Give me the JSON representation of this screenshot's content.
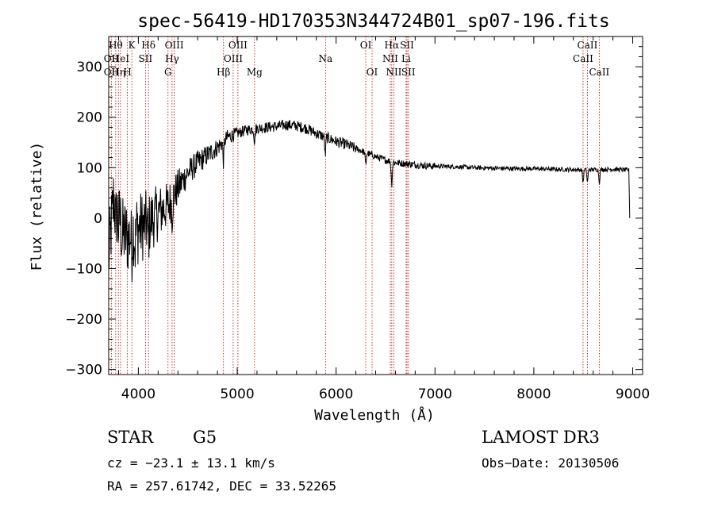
{
  "chart_data": {
    "type": "line",
    "title": "spec-56419-HD170353N344724B01_sp07-196.fits",
    "xlabel": "Wavelength (Å)",
    "ylabel": "Flux (relative)",
    "xlim": [
      3700,
      9100
    ],
    "ylim": [
      -310,
      360
    ],
    "xticks": [
      4000,
      5000,
      6000,
      7000,
      8000,
      9000
    ],
    "yticks": [
      -300,
      -200,
      -100,
      0,
      100,
      200,
      300
    ],
    "spectrum_anchors": [
      [
        3700,
        -80
      ],
      [
        3750,
        40
      ],
      [
        3800,
        10
      ],
      [
        3850,
        -30
      ],
      [
        3900,
        -40
      ],
      [
        3950,
        -20
      ],
      [
        4000,
        -20
      ],
      [
        4100,
        -10
      ],
      [
        4200,
        10
      ],
      [
        4300,
        25
      ],
      [
        4400,
        60
      ],
      [
        4500,
        90
      ],
      [
        4600,
        110
      ],
      [
        4700,
        125
      ],
      [
        4800,
        140
      ],
      [
        4900,
        160
      ],
      [
        5000,
        168
      ],
      [
        5100,
        175
      ],
      [
        5200,
        178
      ],
      [
        5300,
        180
      ],
      [
        5400,
        182
      ],
      [
        5500,
        185
      ],
      [
        5600,
        183
      ],
      [
        5700,
        178
      ],
      [
        5800,
        168
      ],
      [
        5900,
        160
      ],
      [
        6000,
        152
      ],
      [
        6100,
        146
      ],
      [
        6200,
        138
      ],
      [
        6300,
        130
      ],
      [
        6400,
        122
      ],
      [
        6500,
        115
      ],
      [
        6600,
        110
      ],
      [
        6700,
        108
      ],
      [
        6800,
        106
      ],
      [
        6900,
        104
      ],
      [
        7000,
        103
      ],
      [
        7200,
        102
      ],
      [
        7400,
        100
      ],
      [
        7600,
        99
      ],
      [
        7800,
        98
      ],
      [
        8000,
        98
      ],
      [
        8200,
        97
      ],
      [
        8400,
        96
      ],
      [
        8600,
        96
      ],
      [
        8800,
        97
      ],
      [
        8960,
        95
      ]
    ],
    "absorption_lines": [
      {
        "x": 3771,
        "depth": 40
      },
      {
        "x": 3798,
        "depth": 30
      },
      {
        "x": 3835,
        "depth": 25
      },
      {
        "x": 3933,
        "depth": 35
      },
      {
        "x": 3968,
        "depth": 35
      },
      {
        "x": 4102,
        "depth": 30
      },
      {
        "x": 4341,
        "depth": 35
      },
      {
        "x": 4861,
        "depth": 40
      },
      {
        "x": 5175,
        "depth": 25
      },
      {
        "x": 5890,
        "depth": 35
      },
      {
        "x": 6300,
        "depth": 25
      },
      {
        "x": 6563,
        "depth": 45
      },
      {
        "x": 8498,
        "depth": 25
      },
      {
        "x": 8542,
        "depth": 25
      },
      {
        "x": 8662,
        "depth": 25
      }
    ],
    "line_ids": [
      {
        "x": 3727,
        "label": "OII",
        "row": 1
      },
      {
        "x": 3727,
        "label": "OII",
        "row": 2
      },
      {
        "x": 3771,
        "label": "Hθ",
        "row": 0
      },
      {
        "x": 3798,
        "label": "Hη",
        "row": 2
      },
      {
        "x": 3820,
        "label": "HeI",
        "row": 1
      },
      {
        "x": 3889,
        "label": "H",
        "row": 2
      },
      {
        "x": 3934,
        "label": "K",
        "row": 0
      },
      {
        "x": 4072,
        "label": "SII",
        "row": 1
      },
      {
        "x": 4102,
        "label": "Hδ",
        "row": 0
      },
      {
        "x": 4300,
        "label": "G",
        "row": 2
      },
      {
        "x": 4341,
        "label": "Hγ",
        "row": 1
      },
      {
        "x": 4363,
        "label": "OIII",
        "row": 0
      },
      {
        "x": 4861,
        "label": "Hβ",
        "row": 2
      },
      {
        "x": 4959,
        "label": "OIII",
        "row": 1
      },
      {
        "x": 5007,
        "label": "OIII",
        "row": 0
      },
      {
        "x": 5175,
        "label": "Mg",
        "row": 2
      },
      {
        "x": 5893,
        "label": "Na",
        "row": 1
      },
      {
        "x": 6300,
        "label": "OI",
        "row": 0
      },
      {
        "x": 6364,
        "label": "OI",
        "row": 2
      },
      {
        "x": 6548,
        "label": "NII",
        "row": 1
      },
      {
        "x": 6563,
        "label": "Hα",
        "row": 0
      },
      {
        "x": 6584,
        "label": "NII",
        "row": 2
      },
      {
        "x": 6708,
        "label": "Li",
        "row": 1
      },
      {
        "x": 6717,
        "label": "SII",
        "row": 0
      },
      {
        "x": 6731,
        "label": "SII",
        "row": 2
      },
      {
        "x": 8498,
        "label": "CaII",
        "row": 1
      },
      {
        "x": 8542,
        "label": "CaII",
        "row": 0
      },
      {
        "x": 8662,
        "label": "CaII",
        "row": 2
      }
    ]
  },
  "info": {
    "object_type": "STAR",
    "subclass": "G5",
    "survey": "LAMOST DR3",
    "velocity": "cz = −23.1 ± 13.1 km/s",
    "obs_date": "Obs−Date: 20130506",
    "coords": "RA = 257.61742, DEC =  33.52265"
  }
}
